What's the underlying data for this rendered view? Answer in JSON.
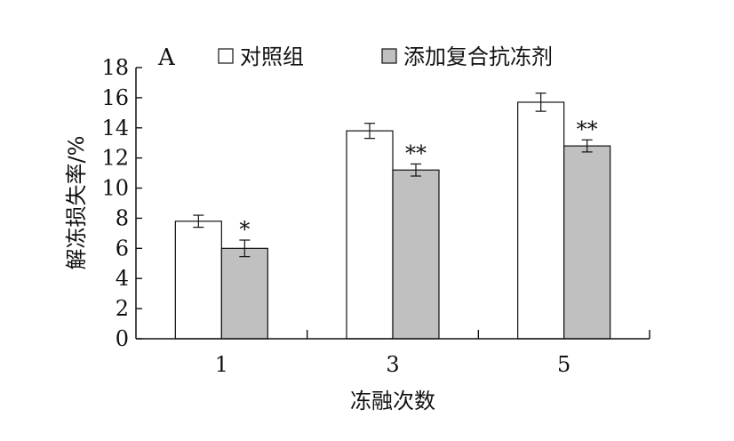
{
  "chart_data": {
    "type": "bar",
    "panel_label": "A",
    "categories": [
      "1",
      "3",
      "5"
    ],
    "series": [
      {
        "name": "对照组",
        "values": [
          7.8,
          13.8,
          15.7
        ],
        "errors": [
          0.4,
          0.5,
          0.6
        ],
        "color": "#ffffff",
        "significance": [
          "",
          "",
          ""
        ]
      },
      {
        "name": "添加复合抗冻剂",
        "values": [
          6.0,
          11.2,
          12.8
        ],
        "errors": [
          0.55,
          0.4,
          0.4
        ],
        "color": "#c0c0c0",
        "significance": [
          "*",
          "**",
          "**"
        ]
      }
    ],
    "xlabel": "冻融次数",
    "ylabel": "解冻损失率/%",
    "ylim": [
      0,
      18
    ],
    "yticks": [
      "0",
      "2",
      "4",
      "6",
      "8",
      "10",
      "12",
      "14",
      "16",
      "18"
    ],
    "grid": false,
    "legend_position": "top"
  }
}
